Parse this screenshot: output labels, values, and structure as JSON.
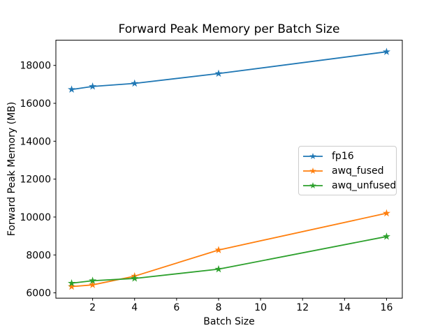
{
  "chart_data": {
    "type": "line",
    "title": "Forward Peak Memory per Batch Size",
    "xlabel": "Batch Size",
    "ylabel": "Forward Peak Memory (MB)",
    "x": [
      1,
      2,
      4,
      8,
      16
    ],
    "series": [
      {
        "name": "fp16",
        "color": "#1f77b4",
        "values": [
          16730,
          16890,
          17050,
          17570,
          18720
        ]
      },
      {
        "name": "awq_fused",
        "color": "#ff7f0e",
        "values": [
          6330,
          6420,
          6880,
          8260,
          10200
        ]
      },
      {
        "name": "awq_unfused",
        "color": "#2ca02c",
        "values": [
          6510,
          6640,
          6760,
          7250,
          8970
        ]
      }
    ],
    "marker": "star",
    "x_ticks": [
      2,
      4,
      6,
      8,
      10,
      12,
      14,
      16
    ],
    "y_ticks": [
      6000,
      8000,
      10000,
      12000,
      14000,
      16000,
      18000
    ],
    "xlim": [
      0.25,
      16.75
    ],
    "ylim": [
      5720,
      19330
    ],
    "grid": false,
    "legend": {
      "entries": [
        "fp16",
        "awq_fused",
        "awq_unfused"
      ],
      "position": "center-right",
      "border_color": "#cccccc",
      "background": "#ffffff"
    },
    "axes_color": "#000000",
    "background": "#ffffff"
  }
}
